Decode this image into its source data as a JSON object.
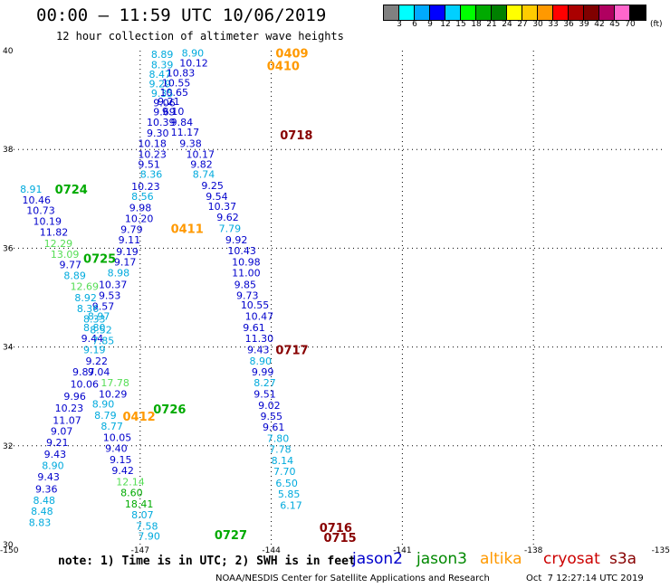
{
  "header": {
    "title": "00:00 – 11:59 UTC 10/06/2019",
    "subtitle": "12 hour collection of altimeter wave heights"
  },
  "colorbar": {
    "unit": "(ft)",
    "labels": [
      "3",
      "6",
      "9",
      "12",
      "15",
      "18",
      "21",
      "24",
      "27",
      "30",
      "33",
      "36",
      "39",
      "42",
      "45",
      "70"
    ],
    "colors": [
      "#808080",
      "#00ffff",
      "#00aaff",
      "#0000ff",
      "#00d0ff",
      "#00ff00",
      "#00aa00",
      "#008000",
      "#ffff00",
      "#ffcc00",
      "#ff9900",
      "#ff0000",
      "#aa0000",
      "#800000",
      "#b00060",
      "#ff66cc",
      "#000000"
    ]
  },
  "footer": {
    "note": "note: 1) Time is in UTC; 2) SWH is in feet",
    "legend": [
      {
        "label": "jason2",
        "color": "#0000cc"
      },
      {
        "label": "jason3",
        "color": "#008800"
      },
      {
        "label": "altika",
        "color": "#ff9900"
      },
      {
        "label": "cryosat",
        "color": "#cc0000"
      },
      {
        "label": "s3a",
        "color": "#880000"
      }
    ],
    "credit": "NOAA/NESDIS Center for Satellite Applications and Research",
    "timestamp": "Oct  7 12:27:14 UTC 2019"
  },
  "chart_data": {
    "type": "scatter",
    "title": "00:00 – 11:59 UTC 10/06/2019",
    "subtitle": "12 hour collection of altimeter wave heights",
    "xlim": [
      -150,
      -135
    ],
    "ylim": [
      30,
      40
    ],
    "x_ticks": [
      "-150",
      "-147",
      "-144",
      "-141",
      "-138",
      "-135"
    ],
    "y_ticks": [
      "30",
      "32",
      "34",
      "36",
      "38",
      "40"
    ],
    "grid": true,
    "colors": {
      "blue": "#0000cc",
      "cyan": "#00aadd",
      "green": "#00aa00",
      "lgreen": "#55dd55",
      "orange": "#ff9900",
      "darkred": "#880000"
    },
    "pass_labels": [
      {
        "text": "0409",
        "lon": -143.9,
        "lat": 39.95,
        "color": "orange"
      },
      {
        "text": "0410",
        "lon": -144.1,
        "lat": 39.7,
        "color": "orange"
      },
      {
        "text": "0718",
        "lon": -143.8,
        "lat": 38.3,
        "color": "darkred"
      },
      {
        "text": "0724",
        "lon": -148.95,
        "lat": 37.2,
        "color": "green"
      },
      {
        "text": "0411",
        "lon": -146.3,
        "lat": 36.4,
        "color": "orange"
      },
      {
        "text": "0725",
        "lon": -148.3,
        "lat": 35.8,
        "color": "green"
      },
      {
        "text": "0717",
        "lon": -143.9,
        "lat": 33.95,
        "color": "darkred"
      },
      {
        "text": "0726",
        "lon": -146.7,
        "lat": 32.75,
        "color": "green"
      },
      {
        "text": "0412",
        "lon": -147.4,
        "lat": 32.6,
        "color": "orange"
      },
      {
        "text": "0727",
        "lon": -145.3,
        "lat": 30.2,
        "color": "green"
      },
      {
        "text": "0716",
        "lon": -142.9,
        "lat": 30.35,
        "color": "darkred"
      },
      {
        "text": "0715",
        "lon": -142.8,
        "lat": 30.15,
        "color": "darkred"
      }
    ],
    "points": [
      {
        "lon": -146.75,
        "lat": 39.93,
        "v": "8.89",
        "c": "cyan"
      },
      {
        "lon": -146.05,
        "lat": 39.95,
        "v": "8.90",
        "c": "cyan"
      },
      {
        "lon": -146.75,
        "lat": 39.72,
        "v": "8.39",
        "c": "cyan"
      },
      {
        "lon": -146.1,
        "lat": 39.75,
        "v": "10.12",
        "c": "blue"
      },
      {
        "lon": -146.8,
        "lat": 39.52,
        "v": "8.47",
        "c": "cyan"
      },
      {
        "lon": -146.4,
        "lat": 39.55,
        "v": "10.83",
        "c": "blue"
      },
      {
        "lon": -146.8,
        "lat": 39.33,
        "v": "9.29",
        "c": "cyan"
      },
      {
        "lon": -146.5,
        "lat": 39.35,
        "v": "10.55",
        "c": "blue"
      },
      {
        "lon": -146.75,
        "lat": 39.14,
        "v": "9.35",
        "c": "cyan"
      },
      {
        "lon": -146.55,
        "lat": 39.16,
        "v": "10.65",
        "c": "blue"
      },
      {
        "lon": -146.7,
        "lat": 38.95,
        "v": "9.06",
        "c": "blue"
      },
      {
        "lon": -146.6,
        "lat": 38.97,
        "v": "9.21",
        "c": "blue"
      },
      {
        "lon": -146.7,
        "lat": 38.76,
        "v": "9.69",
        "c": "blue"
      },
      {
        "lon": -146.5,
        "lat": 38.77,
        "v": "9.10",
        "c": "blue"
      },
      {
        "lon": -146.85,
        "lat": 38.55,
        "v": "10.39",
        "c": "blue"
      },
      {
        "lon": -146.3,
        "lat": 38.55,
        "v": "9.84",
        "c": "blue"
      },
      {
        "lon": -146.85,
        "lat": 38.33,
        "v": "9.30",
        "c": "blue"
      },
      {
        "lon": -146.3,
        "lat": 38.35,
        "v": "11.17",
        "c": "blue"
      },
      {
        "lon": -147.05,
        "lat": 38.12,
        "v": "10.18",
        "c": "blue"
      },
      {
        "lon": -146.1,
        "lat": 38.12,
        "v": "9.38",
        "c": "blue"
      },
      {
        "lon": -147.05,
        "lat": 37.9,
        "v": "10.23",
        "c": "blue"
      },
      {
        "lon": -145.95,
        "lat": 37.9,
        "v": "10.17",
        "c": "blue"
      },
      {
        "lon": -147.05,
        "lat": 37.7,
        "v": "9.51",
        "c": "blue"
      },
      {
        "lon": -145.85,
        "lat": 37.7,
        "v": "9.82",
        "c": "blue"
      },
      {
        "lon": -147.0,
        "lat": 37.5,
        "v": "8.36",
        "c": "cyan"
      },
      {
        "lon": -145.8,
        "lat": 37.5,
        "v": "8.74",
        "c": "cyan"
      },
      {
        "lon": -147.2,
        "lat": 37.25,
        "v": "10.23",
        "c": "blue"
      },
      {
        "lon": -145.6,
        "lat": 37.27,
        "v": "9.25",
        "c": "blue"
      },
      {
        "lon": -147.2,
        "lat": 37.05,
        "v": "8.56",
        "c": "cyan"
      },
      {
        "lon": -145.5,
        "lat": 37.05,
        "v": "9.54",
        "c": "blue"
      },
      {
        "lon": -147.25,
        "lat": 36.82,
        "v": "9.98",
        "c": "blue"
      },
      {
        "lon": -145.45,
        "lat": 36.85,
        "v": "10.37",
        "c": "blue"
      },
      {
        "lon": -147.35,
        "lat": 36.6,
        "v": "10.20",
        "c": "blue"
      },
      {
        "lon": -145.25,
        "lat": 36.63,
        "v": "9.62",
        "c": "blue"
      },
      {
        "lon": -147.45,
        "lat": 36.38,
        "v": "9.79",
        "c": "blue"
      },
      {
        "lon": -145.2,
        "lat": 36.4,
        "v": "7.79",
        "c": "cyan"
      },
      {
        "lon": -147.5,
        "lat": 36.17,
        "v": "9.11",
        "c": "blue"
      },
      {
        "lon": -145.05,
        "lat": 36.17,
        "v": "9.92",
        "c": "blue"
      },
      {
        "lon": -147.55,
        "lat": 35.93,
        "v": "9.19",
        "c": "blue"
      },
      {
        "lon": -145.0,
        "lat": 35.95,
        "v": "10.43",
        "c": "blue"
      },
      {
        "lon": -147.6,
        "lat": 35.72,
        "v": "9.17",
        "c": "blue"
      },
      {
        "lon": -144.9,
        "lat": 35.72,
        "v": "10.98",
        "c": "blue"
      },
      {
        "lon": -147.75,
        "lat": 35.5,
        "v": "8.98",
        "c": "cyan"
      },
      {
        "lon": -144.9,
        "lat": 35.5,
        "v": "11.00",
        "c": "blue"
      },
      {
        "lon": -147.95,
        "lat": 35.27,
        "v": "10.37",
        "c": "blue"
      },
      {
        "lon": -144.85,
        "lat": 35.27,
        "v": "9.85",
        "c": "blue"
      },
      {
        "lon": -147.95,
        "lat": 35.05,
        "v": "9.53",
        "c": "blue"
      },
      {
        "lon": -144.8,
        "lat": 35.05,
        "v": "9.73",
        "c": "blue"
      },
      {
        "lon": -148.1,
        "lat": 34.83,
        "v": "9.57",
        "c": "blue"
      },
      {
        "lon": -144.7,
        "lat": 34.85,
        "v": "10.55",
        "c": "blue"
      },
      {
        "lon": -144.6,
        "lat": 34.62,
        "v": "10.47",
        "c": "blue"
      },
      {
        "lon": -148.2,
        "lat": 34.62,
        "v": "8.97",
        "c": "cyan"
      },
      {
        "lon": -144.65,
        "lat": 34.4,
        "v": "9.61",
        "c": "blue"
      },
      {
        "lon": -148.3,
        "lat": 34.4,
        "v": "8.80",
        "c": "cyan"
      },
      {
        "lon": -144.6,
        "lat": 34.18,
        "v": "11.30",
        "c": "blue"
      },
      {
        "lon": -148.35,
        "lat": 34.18,
        "v": "9.44",
        "c": "blue"
      },
      {
        "lon": -144.55,
        "lat": 33.95,
        "v": "9.43",
        "c": "blue"
      },
      {
        "lon": -148.3,
        "lat": 33.95,
        "v": "9.19",
        "c": "cyan"
      },
      {
        "lon": -144.5,
        "lat": 33.72,
        "v": "8.90",
        "c": "cyan"
      },
      {
        "lon": -148.25,
        "lat": 33.72,
        "v": "9.22",
        "c": "blue"
      },
      {
        "lon": -144.45,
        "lat": 33.5,
        "v": "9.99",
        "c": "blue"
      },
      {
        "lon": -148.2,
        "lat": 33.5,
        "v": "9.04",
        "c": "blue"
      },
      {
        "lon": -144.4,
        "lat": 33.28,
        "v": "8.27",
        "c": "cyan"
      },
      {
        "lon": -147.9,
        "lat": 33.28,
        "v": "17.78",
        "c": "lgreen"
      },
      {
        "lon": -144.4,
        "lat": 33.05,
        "v": "9.51",
        "c": "blue"
      },
      {
        "lon": -147.95,
        "lat": 33.05,
        "v": "10.29",
        "c": "blue"
      },
      {
        "lon": -144.3,
        "lat": 32.82,
        "v": "9.02",
        "c": "blue"
      },
      {
        "lon": -148.1,
        "lat": 32.85,
        "v": "8.90",
        "c": "cyan"
      },
      {
        "lon": -144.25,
        "lat": 32.6,
        "v": "9.55",
        "c": "blue"
      },
      {
        "lon": -148.05,
        "lat": 32.62,
        "v": "8.79",
        "c": "cyan"
      },
      {
        "lon": -144.2,
        "lat": 32.38,
        "v": "9.61",
        "c": "blue"
      },
      {
        "lon": -147.9,
        "lat": 32.4,
        "v": "8.77",
        "c": "cyan"
      },
      {
        "lon": -144.1,
        "lat": 32.15,
        "v": "7.80",
        "c": "cyan"
      },
      {
        "lon": -147.85,
        "lat": 32.17,
        "v": "10.05",
        "c": "blue"
      },
      {
        "lon": -144.05,
        "lat": 31.93,
        "v": "7.78",
        "c": "cyan"
      },
      {
        "lon": -147.8,
        "lat": 31.95,
        "v": "9.40",
        "c": "blue"
      },
      {
        "lon": -144.0,
        "lat": 31.7,
        "v": "8.14",
        "c": "cyan"
      },
      {
        "lon": -147.7,
        "lat": 31.72,
        "v": "9.15",
        "c": "blue"
      },
      {
        "lon": -143.95,
        "lat": 31.48,
        "v": "7.70",
        "c": "cyan"
      },
      {
        "lon": -147.65,
        "lat": 31.5,
        "v": "9.42",
        "c": "blue"
      },
      {
        "lon": -143.9,
        "lat": 31.25,
        "v": "6.50",
        "c": "cyan"
      },
      {
        "lon": -147.55,
        "lat": 31.27,
        "v": "12.14",
        "c": "lgreen"
      },
      {
        "lon": -143.85,
        "lat": 31.03,
        "v": "5.85",
        "c": "cyan"
      },
      {
        "lon": -147.45,
        "lat": 31.05,
        "v": "8.60",
        "c": "green"
      },
      {
        "lon": -143.8,
        "lat": 30.8,
        "v": "6.17",
        "c": "cyan"
      },
      {
        "lon": -147.35,
        "lat": 30.82,
        "v": "18.41",
        "c": "green"
      },
      {
        "lon": -147.2,
        "lat": 30.6,
        "v": "8.07",
        "c": "cyan"
      },
      {
        "lon": -147.1,
        "lat": 30.38,
        "v": "7.58",
        "c": "cyan"
      },
      {
        "lon": -147.05,
        "lat": 30.17,
        "v": "7.90",
        "c": "cyan"
      },
      {
        "lon": -149.75,
        "lat": 37.2,
        "v": "8.91",
        "c": "cyan"
      },
      {
        "lon": -149.7,
        "lat": 36.98,
        "v": "10.46",
        "c": "blue"
      },
      {
        "lon": -149.6,
        "lat": 36.77,
        "v": "10.73",
        "c": "blue"
      },
      {
        "lon": -149.45,
        "lat": 36.55,
        "v": "10.19",
        "c": "blue"
      },
      {
        "lon": -149.3,
        "lat": 36.33,
        "v": "11.82",
        "c": "blue"
      },
      {
        "lon": -149.2,
        "lat": 36.1,
        "v": "12.29",
        "c": "lgreen"
      },
      {
        "lon": -149.05,
        "lat": 35.88,
        "v": "13.09",
        "c": "lgreen"
      },
      {
        "lon": -148.85,
        "lat": 35.67,
        "v": "9.77",
        "c": "blue"
      },
      {
        "lon": -148.75,
        "lat": 35.45,
        "v": "8.89",
        "c": "cyan"
      },
      {
        "lon": -148.6,
        "lat": 35.23,
        "v": "12.69",
        "c": "lgreen"
      },
      {
        "lon": -148.5,
        "lat": 35.0,
        "v": "8.92",
        "c": "cyan"
      },
      {
        "lon": -148.45,
        "lat": 34.78,
        "v": "8.36",
        "c": "cyan"
      },
      {
        "lon": -148.3,
        "lat": 34.57,
        "v": "8.33",
        "c": "cyan"
      },
      {
        "lon": -148.15,
        "lat": 34.35,
        "v": "8.52",
        "c": "cyan"
      },
      {
        "lon": -148.1,
        "lat": 34.13,
        "v": "7.85",
        "c": "cyan"
      },
      {
        "lon": -148.55,
        "lat": 33.5,
        "v": "9.87",
        "c": "blue"
      },
      {
        "lon": -148.6,
        "lat": 33.25,
        "v": "10.06",
        "c": "blue"
      },
      {
        "lon": -148.75,
        "lat": 33.0,
        "v": "9.96",
        "c": "blue"
      },
      {
        "lon": -148.95,
        "lat": 32.77,
        "v": "10.23",
        "c": "blue"
      },
      {
        "lon": -149.0,
        "lat": 32.52,
        "v": "11.07",
        "c": "blue"
      },
      {
        "lon": -149.05,
        "lat": 32.3,
        "v": "9.07",
        "c": "blue"
      },
      {
        "lon": -149.15,
        "lat": 32.07,
        "v": "9.21",
        "c": "blue"
      },
      {
        "lon": -149.2,
        "lat": 31.83,
        "v": "9.43",
        "c": "blue"
      },
      {
        "lon": -149.25,
        "lat": 31.6,
        "v": "8.90",
        "c": "cyan"
      },
      {
        "lon": -149.35,
        "lat": 31.37,
        "v": "9.43",
        "c": "blue"
      },
      {
        "lon": -149.4,
        "lat": 31.13,
        "v": "9.36",
        "c": "blue"
      },
      {
        "lon": -149.45,
        "lat": 30.9,
        "v": "8.48",
        "c": "cyan"
      },
      {
        "lon": -149.5,
        "lat": 30.68,
        "v": "8.48",
        "c": "cyan"
      },
      {
        "lon": -149.55,
        "lat": 30.45,
        "v": "8.83",
        "c": "cyan"
      }
    ]
  }
}
